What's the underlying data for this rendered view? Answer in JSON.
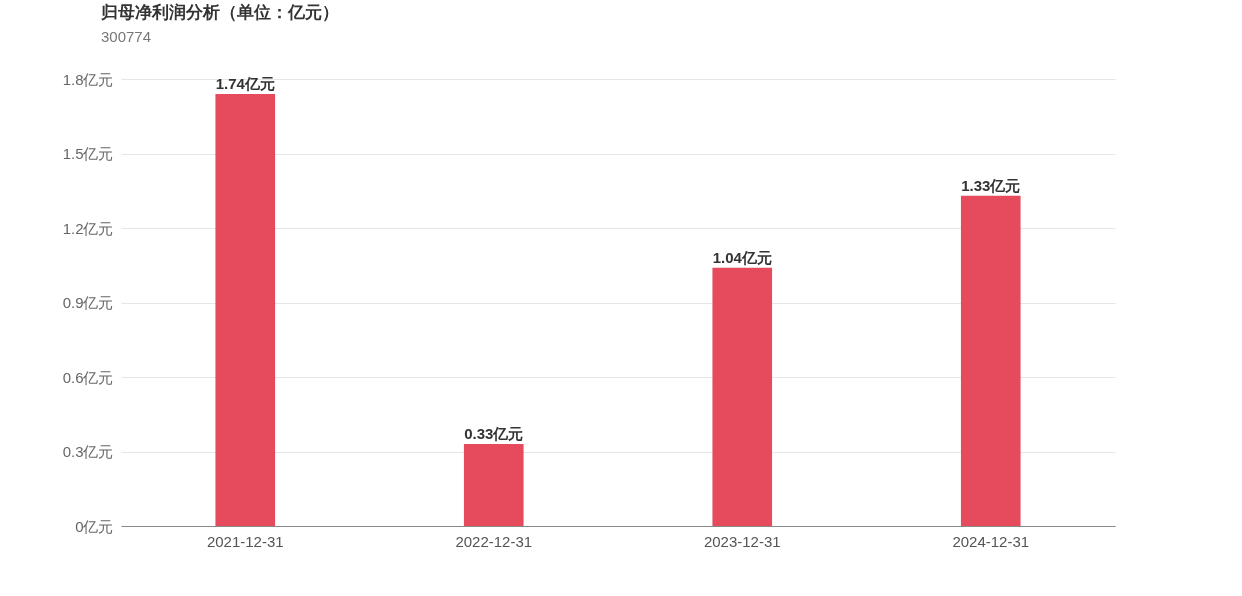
{
  "chart_data": {
    "type": "bar",
    "title": "归母净利润分析（单位：亿元）",
    "subtitle": "300774",
    "categories": [
      "2021-12-31",
      "2022-12-31",
      "2023-12-31",
      "2024-12-31"
    ],
    "values": [
      1.74,
      0.33,
      1.04,
      1.33
    ],
    "value_labels": [
      "1.74亿元",
      "0.33亿元",
      "1.04亿元",
      "1.33亿元"
    ],
    "color": "#e54b5d",
    "ylim": [
      0,
      1.8
    ],
    "yticks": [
      {
        "value": 0,
        "label": "0亿元"
      },
      {
        "value": 0.3,
        "label": "0.3亿元"
      },
      {
        "value": 0.6,
        "label": "0.6亿元"
      },
      {
        "value": 0.9,
        "label": "0.9亿元"
      },
      {
        "value": 1.2,
        "label": "1.2亿元"
      },
      {
        "value": 1.5,
        "label": "1.5亿元"
      },
      {
        "value": 1.8,
        "label": "1.8亿元"
      }
    ],
    "grid": "y"
  }
}
